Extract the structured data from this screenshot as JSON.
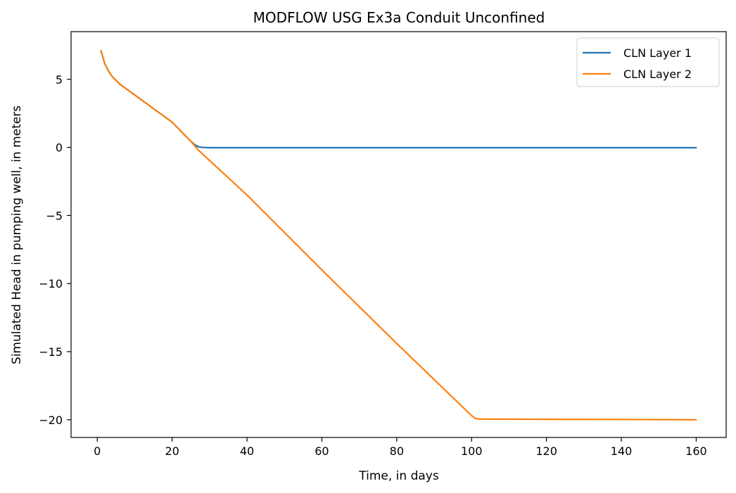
{
  "chart_data": {
    "type": "line",
    "title": "MODFLOW USG Ex3a Conduit Unconfined",
    "xlabel": "Time, in days",
    "ylabel": "Simulated Head in pumping well, in meters",
    "xlim": [
      -7,
      168
    ],
    "ylim": [
      -21.3,
      8.5
    ],
    "xticks": [
      0,
      20,
      40,
      60,
      80,
      100,
      120,
      140,
      160
    ],
    "xtick_labels": [
      "0",
      "20",
      "40",
      "60",
      "80",
      "100",
      "120",
      "140",
      "160"
    ],
    "yticks": [
      -20,
      -15,
      -10,
      -5,
      0,
      5
    ],
    "ytick_labels": [
      "−20",
      "−15",
      "−10",
      "−5",
      "0",
      "5"
    ],
    "grid": false,
    "legend_position": "top-right",
    "series": [
      {
        "name": "CLN Layer 1",
        "color": "#1f77b4",
        "points": [
          [
            1,
            7.1
          ],
          [
            2,
            6.15
          ],
          [
            3,
            5.6
          ],
          [
            4,
            5.2
          ],
          [
            6,
            4.65
          ],
          [
            8,
            4.25
          ],
          [
            10,
            3.85
          ],
          [
            15,
            2.85
          ],
          [
            20,
            1.85
          ],
          [
            25,
            0.45
          ],
          [
            26,
            0.2
          ],
          [
            27,
            0.05
          ],
          [
            28,
            0.0
          ],
          [
            30,
            -0.02
          ],
          [
            60,
            -0.02
          ],
          [
            100,
            -0.02
          ],
          [
            130,
            -0.02
          ],
          [
            160,
            -0.02
          ]
        ]
      },
      {
        "name": "CLN Layer 2",
        "color": "#ff7f0e",
        "points": [
          [
            1,
            7.1
          ],
          [
            2,
            6.15
          ],
          [
            3,
            5.6
          ],
          [
            4,
            5.2
          ],
          [
            6,
            4.65
          ],
          [
            8,
            4.25
          ],
          [
            10,
            3.85
          ],
          [
            15,
            2.85
          ],
          [
            20,
            1.85
          ],
          [
            25,
            0.45
          ],
          [
            27,
            -0.2
          ],
          [
            40,
            -3.5
          ],
          [
            60,
            -9.0
          ],
          [
            80,
            -14.4
          ],
          [
            100,
            -19.7
          ],
          [
            101,
            -19.9
          ],
          [
            102,
            -19.95
          ],
          [
            120,
            -19.97
          ],
          [
            140,
            -19.98
          ],
          [
            160,
            -20.0
          ]
        ]
      }
    ]
  }
}
